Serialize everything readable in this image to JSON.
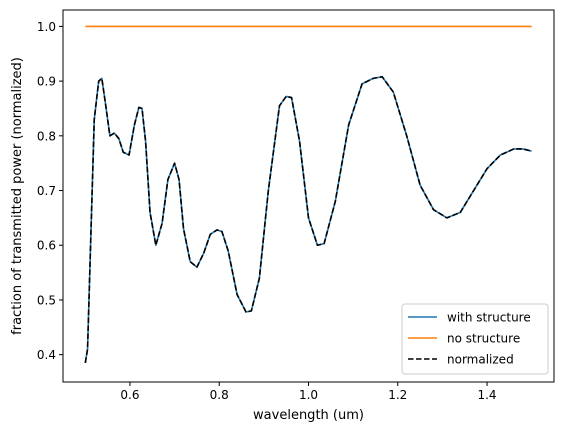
{
  "chart_data": {
    "type": "line",
    "xlabel": "wavelength (um)",
    "ylabel": "fraction of transmitted power (normalized)",
    "xlim": [
      0.45,
      1.55
    ],
    "ylim": [
      0.35,
      1.03
    ],
    "xticks": [
      0.6,
      0.8,
      1.0,
      1.2,
      1.4
    ],
    "xtick_labels": [
      "0.6",
      "0.8",
      "1.0",
      "1.2",
      "1.4"
    ],
    "yticks": [
      0.4,
      0.5,
      0.6,
      0.7,
      0.8,
      0.9,
      1.0
    ],
    "ytick_labels": [
      "0.4",
      "0.5",
      "0.6",
      "0.7",
      "0.8",
      "0.9",
      "1.0"
    ],
    "grid": false,
    "legend_position": "lower right",
    "series": [
      {
        "name": "with structure",
        "color": "#1f77b4",
        "style": "solid",
        "x": [
          0.5,
          0.505,
          0.51,
          0.52,
          0.53,
          0.537,
          0.545,
          0.555,
          0.565,
          0.575,
          0.585,
          0.598,
          0.61,
          0.62,
          0.627,
          0.635,
          0.645,
          0.658,
          0.672,
          0.685,
          0.7,
          0.71,
          0.72,
          0.735,
          0.75,
          0.765,
          0.78,
          0.795,
          0.806,
          0.82,
          0.84,
          0.86,
          0.872,
          0.89,
          0.91,
          0.935,
          0.95,
          0.962,
          0.98,
          1.0,
          1.02,
          1.035,
          1.06,
          1.09,
          1.12,
          1.145,
          1.165,
          1.19,
          1.22,
          1.25,
          1.28,
          1.31,
          1.34,
          1.37,
          1.4,
          1.43,
          1.46,
          1.48,
          1.5
        ],
        "y": [
          0.385,
          0.41,
          0.55,
          0.83,
          0.9,
          0.905,
          0.86,
          0.8,
          0.805,
          0.795,
          0.77,
          0.765,
          0.82,
          0.852,
          0.85,
          0.79,
          0.66,
          0.6,
          0.64,
          0.72,
          0.75,
          0.72,
          0.63,
          0.57,
          0.56,
          0.585,
          0.62,
          0.628,
          0.625,
          0.59,
          0.51,
          0.478,
          0.48,
          0.54,
          0.7,
          0.855,
          0.872,
          0.87,
          0.79,
          0.65,
          0.6,
          0.603,
          0.68,
          0.82,
          0.895,
          0.905,
          0.908,
          0.88,
          0.8,
          0.71,
          0.665,
          0.65,
          0.66,
          0.7,
          0.74,
          0.765,
          0.776,
          0.776,
          0.772
        ]
      },
      {
        "name": "no structure",
        "color": "#ff7f0e",
        "style": "solid",
        "x": [
          0.5,
          1.5
        ],
        "y": [
          1.0,
          1.0
        ]
      },
      {
        "name": "normalized",
        "color": "#000000",
        "style": "dashed",
        "x": [
          0.5,
          0.505,
          0.51,
          0.52,
          0.53,
          0.537,
          0.545,
          0.555,
          0.565,
          0.575,
          0.585,
          0.598,
          0.61,
          0.62,
          0.627,
          0.635,
          0.645,
          0.658,
          0.672,
          0.685,
          0.7,
          0.71,
          0.72,
          0.735,
          0.75,
          0.765,
          0.78,
          0.795,
          0.806,
          0.82,
          0.84,
          0.86,
          0.872,
          0.89,
          0.91,
          0.935,
          0.95,
          0.962,
          0.98,
          1.0,
          1.02,
          1.035,
          1.06,
          1.09,
          1.12,
          1.145,
          1.165,
          1.19,
          1.22,
          1.25,
          1.28,
          1.31,
          1.34,
          1.37,
          1.4,
          1.43,
          1.46,
          1.48,
          1.5
        ],
        "y": [
          0.385,
          0.41,
          0.55,
          0.83,
          0.9,
          0.905,
          0.86,
          0.8,
          0.805,
          0.795,
          0.77,
          0.765,
          0.82,
          0.852,
          0.85,
          0.79,
          0.66,
          0.6,
          0.64,
          0.72,
          0.75,
          0.72,
          0.63,
          0.57,
          0.56,
          0.585,
          0.62,
          0.628,
          0.625,
          0.59,
          0.51,
          0.478,
          0.48,
          0.54,
          0.7,
          0.855,
          0.872,
          0.87,
          0.79,
          0.65,
          0.6,
          0.603,
          0.68,
          0.82,
          0.895,
          0.905,
          0.908,
          0.88,
          0.8,
          0.71,
          0.665,
          0.65,
          0.66,
          0.7,
          0.74,
          0.765,
          0.776,
          0.776,
          0.772
        ]
      }
    ]
  }
}
